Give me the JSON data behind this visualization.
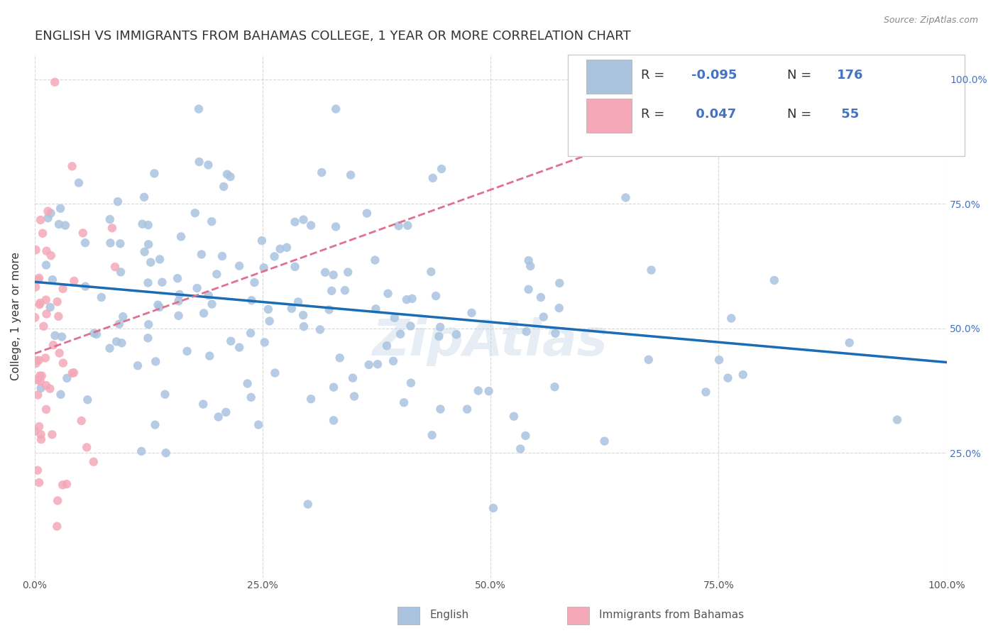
{
  "title": "ENGLISH VS IMMIGRANTS FROM BAHAMAS COLLEGE, 1 YEAR OR MORE CORRELATION CHART",
  "source": "Source: ZipAtlas.com",
  "xlabel": "",
  "ylabel": "College, 1 year or more",
  "right_ytick_labels": [
    "25.0%",
    "50.0%",
    "75.0%",
    "100.0%"
  ],
  "right_ytick_values": [
    0.25,
    0.5,
    0.75,
    1.0
  ],
  "xlim": [
    0.0,
    1.0
  ],
  "ylim": [
    0.0,
    1.05
  ],
  "xtick_labels": [
    "0.0%",
    "25.0%",
    "50.0%",
    "75.0%",
    "100.0%"
  ],
  "xtick_values": [
    0.0,
    0.25,
    0.5,
    0.75,
    1.0
  ],
  "legend_r1": "R = -0.095",
  "legend_n1": "N = 176",
  "legend_r2": "R =  0.047",
  "legend_n2": "N =  55",
  "R_english": -0.095,
  "N_english": 176,
  "R_bahamas": 0.047,
  "N_bahamas": 55,
  "color_english": "#aac4e0",
  "color_bahamas": "#f4a8b8",
  "color_english_line": "#1a6cb5",
  "color_bahamas_line": "#e07090",
  "color_text_blue": "#4472c4",
  "watermark": "ZipAtlas",
  "background_color": "#ffffff",
  "grid_color": "#c8c8c8",
  "title_fontsize": 13,
  "label_fontsize": 11,
  "tick_fontsize": 10,
  "legend_fontsize": 13
}
